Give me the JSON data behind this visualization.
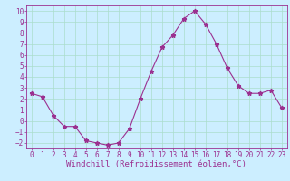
{
  "x": [
    0,
    1,
    2,
    3,
    4,
    5,
    6,
    7,
    8,
    9,
    10,
    11,
    12,
    13,
    14,
    15,
    16,
    17,
    18,
    19,
    20,
    21,
    22,
    23
  ],
  "y": [
    2.5,
    2.2,
    0.5,
    -0.5,
    -0.5,
    -1.8,
    -2.0,
    -2.2,
    -2.0,
    -0.7,
    2.0,
    4.5,
    6.7,
    7.8,
    9.3,
    10.0,
    8.8,
    7.0,
    4.8,
    3.2,
    2.5,
    2.5,
    2.8,
    1.2
  ],
  "line_color": "#9b3090",
  "marker": "*",
  "marker_size": 3.5,
  "bg_color": "#cceeff",
  "grid_color": "#aaddcc",
  "xlabel": "Windchill (Refroidissement éolien,°C)",
  "xlim": [
    -0.5,
    23.5
  ],
  "ylim": [
    -2.5,
    10.5
  ],
  "yticks": [
    -2,
    -1,
    0,
    1,
    2,
    3,
    4,
    5,
    6,
    7,
    8,
    9,
    10
  ],
  "xticks": [
    0,
    1,
    2,
    3,
    4,
    5,
    6,
    7,
    8,
    9,
    10,
    11,
    12,
    13,
    14,
    15,
    16,
    17,
    18,
    19,
    20,
    21,
    22,
    23
  ],
  "tick_label_fontsize": 5.5,
  "xlabel_fontsize": 6.5
}
